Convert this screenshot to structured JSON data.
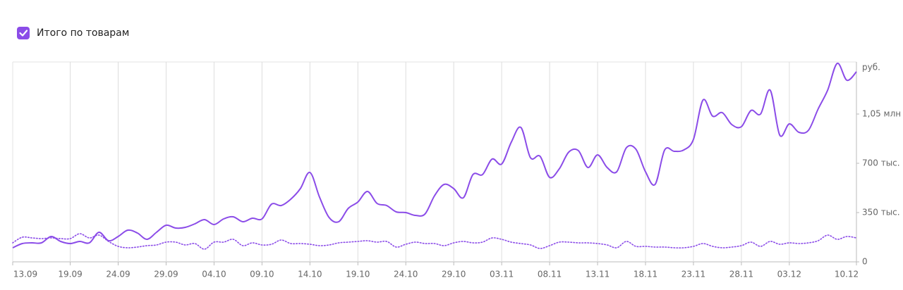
{
  "chart_data": {
    "type": "line",
    "y_label": "руб.",
    "categories": [
      "13.09",
      null,
      null,
      null,
      null,
      null,
      "19.09",
      null,
      null,
      null,
      null,
      "24.09",
      null,
      null,
      null,
      null,
      "29.09",
      null,
      null,
      null,
      null,
      "04.10",
      null,
      null,
      null,
      null,
      "09.10",
      null,
      null,
      null,
      null,
      "14.10",
      null,
      null,
      null,
      null,
      "19.10",
      null,
      null,
      null,
      null,
      "24.10",
      null,
      null,
      null,
      null,
      "29.10",
      null,
      null,
      null,
      null,
      "03.11",
      null,
      null,
      null,
      null,
      "08.11",
      null,
      null,
      null,
      null,
      "13.11",
      null,
      null,
      null,
      null,
      "18.11",
      null,
      null,
      null,
      null,
      "23.11",
      null,
      null,
      null,
      null,
      "28.11",
      null,
      null,
      null,
      null,
      "03.12",
      null,
      null,
      null,
      null,
      null,
      null,
      "10.12"
    ],
    "series": [
      {
        "name": "Итого по товарам",
        "color": "#8b4ce8",
        "dash": "solid",
        "values": [
          100000,
          130000,
          135000,
          135000,
          180000,
          145000,
          130000,
          145000,
          135000,
          210000,
          150000,
          180000,
          225000,
          205000,
          160000,
          210000,
          260000,
          240000,
          245000,
          270000,
          300000,
          265000,
          305000,
          320000,
          285000,
          310000,
          305000,
          410000,
          400000,
          445000,
          520000,
          635000,
          460000,
          315000,
          285000,
          380000,
          425000,
          500000,
          415000,
          400000,
          355000,
          350000,
          330000,
          340000,
          470000,
          550000,
          520000,
          455000,
          620000,
          620000,
          730000,
          695000,
          850000,
          955000,
          740000,
          750000,
          600000,
          660000,
          780000,
          790000,
          670000,
          760000,
          670000,
          640000,
          810000,
          800000,
          640000,
          550000,
          795000,
          785000,
          795000,
          870000,
          1150000,
          1035000,
          1060000,
          975000,
          960000,
          1075000,
          1050000,
          1220000,
          900000,
          980000,
          920000,
          935000,
          1085000,
          1220000,
          1410000,
          1290000,
          1350000
        ]
      },
      {
        "color": "#8b4ce8",
        "dash": "dotted",
        "values": [
          135000,
          175000,
          170000,
          165000,
          170000,
          165000,
          165000,
          200000,
          170000,
          190000,
          145000,
          110000,
          100000,
          105000,
          115000,
          120000,
          140000,
          140000,
          120000,
          130000,
          90000,
          140000,
          140000,
          160000,
          115000,
          135000,
          120000,
          125000,
          155000,
          130000,
          130000,
          125000,
          115000,
          120000,
          135000,
          140000,
          145000,
          150000,
          140000,
          145000,
          105000,
          125000,
          140000,
          130000,
          130000,
          115000,
          135000,
          145000,
          135000,
          140000,
          170000,
          160000,
          140000,
          130000,
          120000,
          95000,
          115000,
          140000,
          140000,
          135000,
          135000,
          130000,
          120000,
          100000,
          145000,
          110000,
          110000,
          105000,
          105000,
          100000,
          100000,
          110000,
          130000,
          110000,
          100000,
          105000,
          115000,
          140000,
          110000,
          145000,
          125000,
          135000,
          130000,
          135000,
          150000,
          190000,
          160000,
          180000,
          170000
        ]
      }
    ],
    "ylim": [
      0,
      1420000
    ],
    "yticks": [
      0,
      {
        "value": 350000,
        "label": "350 тыс."
      },
      {
        "value": 700000,
        "label": "700 тыс."
      },
      {
        "value": 1050000,
        "label": "1,05 млн"
      }
    ],
    "grid": true
  }
}
